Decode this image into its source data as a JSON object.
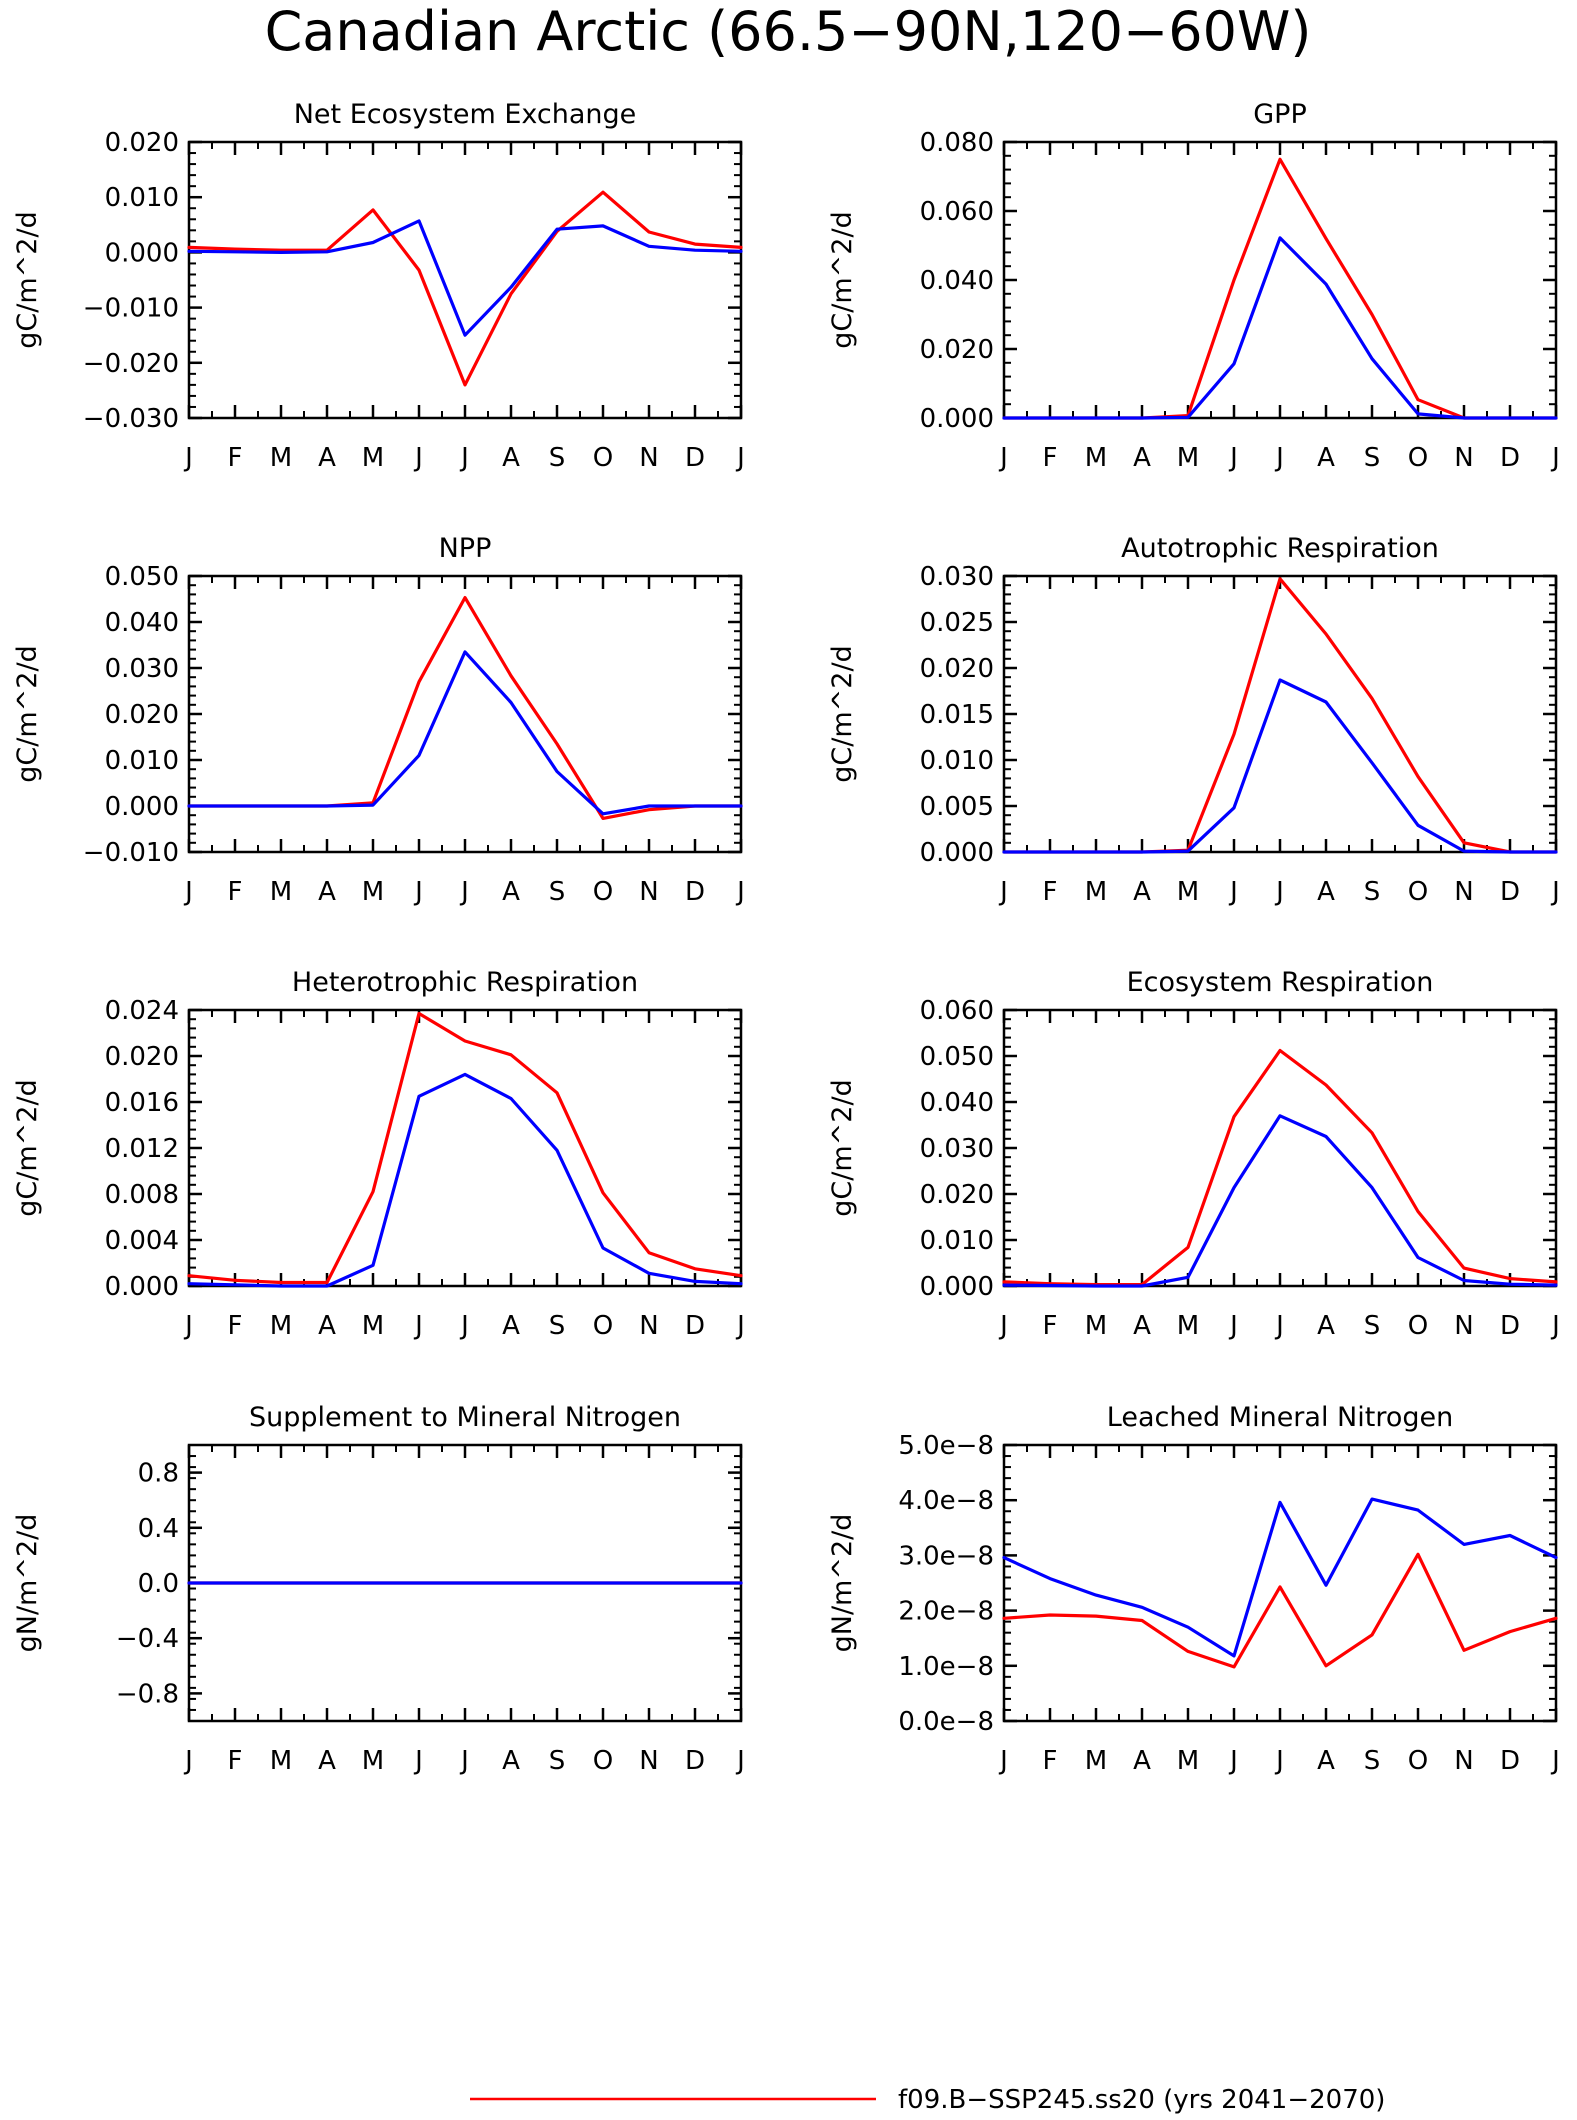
{
  "figure": {
    "title": "Canadian Arctic (66.5−90N,120−60W)"
  },
  "legend": {
    "entries": [
      {
        "label": "f09.B−SSP245.ss20 (yrs 2041−2070)",
        "color": "#ff0000"
      }
    ]
  },
  "colors": {
    "red": "#ff0000",
    "blue": "#0000ff",
    "axes": "#000000"
  },
  "chart_data": [
    {
      "type": "line",
      "title": "Net Ecosystem Exchange",
      "ylabel": "gC/m^2/d",
      "x": [
        "J",
        "F",
        "M",
        "A",
        "M",
        "J",
        "J",
        "A",
        "S",
        "O",
        "N",
        "D",
        "J"
      ],
      "ylim": [
        -0.03,
        0.02
      ],
      "yticks": [
        0.02,
        0.01,
        0.0,
        -0.01,
        -0.02,
        -0.03
      ],
      "ytick_labels": [
        "0.020",
        "0.010",
        "0.000",
        "−0.010",
        "−0.020",
        "−0.030"
      ],
      "series": [
        {
          "color": "#ff0000",
          "values": [
            0.0009,
            0.0006,
            0.0004,
            0.0004,
            0.0077,
            -0.0032,
            -0.024,
            -0.0075,
            0.0038,
            0.0109,
            0.0037,
            0.0015,
            0.0009
          ]
        },
        {
          "color": "#0000ff",
          "values": [
            0.0002,
            0.0001,
            0.0,
            0.0001,
            0.0018,
            0.0057,
            -0.015,
            -0.0063,
            0.0042,
            0.0048,
            0.0011,
            0.0004,
            0.0002
          ]
        }
      ]
    },
    {
      "type": "line",
      "title": "GPP",
      "ylabel": "gC/m^2/d",
      "x": [
        "J",
        "F",
        "M",
        "A",
        "M",
        "J",
        "J",
        "A",
        "S",
        "O",
        "N",
        "D",
        "J"
      ],
      "ylim": [
        0.0,
        0.08
      ],
      "yticks": [
        0.08,
        0.06,
        0.04,
        0.02,
        0.0
      ],
      "ytick_labels": [
        "0.080",
        "0.060",
        "0.040",
        "0.020",
        "0.000"
      ],
      "series": [
        {
          "color": "#ff0000",
          "values": [
            0.0,
            0.0,
            0.0,
            0.0,
            0.0007,
            0.04,
            0.075,
            0.052,
            0.03,
            0.0053,
            0.0,
            0.0,
            0.0
          ]
        },
        {
          "color": "#0000ff",
          "values": [
            0.0,
            0.0,
            0.0,
            0.0,
            0.0002,
            0.0157,
            0.0522,
            0.0388,
            0.0172,
            0.0012,
            0.0,
            0.0,
            0.0
          ]
        }
      ]
    },
    {
      "type": "line",
      "title": "NPP",
      "ylabel": "gC/m^2/d",
      "x": [
        "J",
        "F",
        "M",
        "A",
        "M",
        "J",
        "J",
        "A",
        "S",
        "O",
        "N",
        "D",
        "J"
      ],
      "ylim": [
        -0.01,
        0.05
      ],
      "yticks": [
        0.05,
        0.04,
        0.03,
        0.02,
        0.01,
        0.0,
        -0.01
      ],
      "ytick_labels": [
        "0.050",
        "0.040",
        "0.030",
        "0.020",
        "0.010",
        "0.000",
        "−0.010"
      ],
      "series": [
        {
          "color": "#ff0000",
          "values": [
            0.0,
            0.0,
            0.0,
            0.0,
            0.0007,
            0.027,
            0.0453,
            0.0283,
            0.0135,
            -0.0027,
            -0.0008,
            0.0,
            0.0
          ]
        },
        {
          "color": "#0000ff",
          "values": [
            0.0,
            0.0,
            0.0,
            0.0,
            0.0002,
            0.011,
            0.0335,
            0.0225,
            0.0075,
            -0.0017,
            0.0,
            0.0,
            0.0
          ]
        }
      ]
    },
    {
      "type": "line",
      "title": "Autotrophic Respiration",
      "ylabel": "gC/m^2/d",
      "x": [
        "J",
        "F",
        "M",
        "A",
        "M",
        "J",
        "J",
        "A",
        "S",
        "O",
        "N",
        "D",
        "J"
      ],
      "ylim": [
        0.0,
        0.03
      ],
      "yticks": [
        0.03,
        0.025,
        0.02,
        0.015,
        0.01,
        0.005,
        0.0
      ],
      "ytick_labels": [
        "0.030",
        "0.025",
        "0.020",
        "0.015",
        "0.010",
        "0.005",
        "0.000"
      ],
      "series": [
        {
          "color": "#ff0000",
          "values": [
            0.0,
            0.0,
            0.0,
            0.0,
            0.0002,
            0.0128,
            0.0297,
            0.0237,
            0.0167,
            0.0082,
            0.001,
            0.0,
            0.0
          ]
        },
        {
          "color": "#0000ff",
          "values": [
            0.0,
            0.0,
            0.0,
            0.0,
            0.0001,
            0.0048,
            0.0187,
            0.0163,
            0.0097,
            0.0029,
            0.0001,
            0.0,
            0.0
          ]
        }
      ]
    },
    {
      "type": "line",
      "title": "Heterotrophic Respiration",
      "ylabel": "gC/m^2/d",
      "x": [
        "J",
        "F",
        "M",
        "A",
        "M",
        "J",
        "J",
        "A",
        "S",
        "O",
        "N",
        "D",
        "J"
      ],
      "ylim": [
        0.0,
        0.024
      ],
      "yticks": [
        0.024,
        0.02,
        0.016,
        0.012,
        0.008,
        0.004,
        0.0
      ],
      "ytick_labels": [
        "0.024",
        "0.020",
        "0.016",
        "0.012",
        "0.008",
        "0.004",
        "0.000"
      ],
      "series": [
        {
          "color": "#ff0000",
          "values": [
            0.0009,
            0.0005,
            0.0003,
            0.0003,
            0.0082,
            0.0237,
            0.0213,
            0.0201,
            0.0168,
            0.0081,
            0.0029,
            0.0015,
            0.0009
          ]
        },
        {
          "color": "#0000ff",
          "values": [
            0.0002,
            0.0001,
            0.0,
            0.0,
            0.0018,
            0.0165,
            0.0184,
            0.0163,
            0.0118,
            0.0033,
            0.0011,
            0.0004,
            0.0002
          ]
        }
      ]
    },
    {
      "type": "line",
      "title": "Ecosystem Respiration",
      "ylabel": "gC/m^2/d",
      "x": [
        "J",
        "F",
        "M",
        "A",
        "M",
        "J",
        "J",
        "A",
        "S",
        "O",
        "N",
        "D",
        "J"
      ],
      "ylim": [
        0.0,
        0.06
      ],
      "yticks": [
        0.06,
        0.05,
        0.04,
        0.03,
        0.02,
        0.01,
        0.0
      ],
      "ytick_labels": [
        "0.060",
        "0.050",
        "0.040",
        "0.030",
        "0.020",
        "0.010",
        "0.000"
      ],
      "series": [
        {
          "color": "#ff0000",
          "values": [
            0.0009,
            0.0005,
            0.0003,
            0.0003,
            0.0084,
            0.0368,
            0.0512,
            0.0437,
            0.0333,
            0.0162,
            0.0039,
            0.0016,
            0.0009
          ]
        },
        {
          "color": "#0000ff",
          "values": [
            0.0002,
            0.0001,
            0.0,
            0.0,
            0.0019,
            0.0214,
            0.037,
            0.0325,
            0.0214,
            0.0062,
            0.0012,
            0.0004,
            0.0002
          ]
        }
      ]
    },
    {
      "type": "line",
      "title": "Supplement to Mineral Nitrogen",
      "ylabel": "gN/m^2/d",
      "x": [
        "J",
        "F",
        "M",
        "A",
        "M",
        "J",
        "J",
        "A",
        "S",
        "O",
        "N",
        "D",
        "J"
      ],
      "ylim": [
        -1.0,
        1.0
      ],
      "yticks": [
        0.8,
        0.4,
        0.0,
        -0.4,
        -0.8
      ],
      "ytick_labels": [
        "0.8",
        "0.4",
        "0.0",
        "−0.4",
        "−0.8"
      ],
      "series": [
        {
          "color": "#ff0000",
          "values": [
            0,
            0,
            0,
            0,
            0,
            0,
            0,
            0,
            0,
            0,
            0,
            0,
            0
          ]
        },
        {
          "color": "#0000ff",
          "values": [
            0,
            0,
            0,
            0,
            0,
            0,
            0,
            0,
            0,
            0,
            0,
            0,
            0
          ]
        }
      ]
    },
    {
      "type": "line",
      "title": "Leached Mineral Nitrogen",
      "ylabel": "gN/m^2/d",
      "x": [
        "J",
        "F",
        "M",
        "A",
        "M",
        "J",
        "J",
        "A",
        "S",
        "O",
        "N",
        "D",
        "J"
      ],
      "ylim": [
        0.0,
        5e-08
      ],
      "yticks": [
        5e-08,
        4e-08,
        3e-08,
        2e-08,
        1e-08,
        0.0
      ],
      "ytick_labels": [
        "5.0e−8",
        "4.0e−8",
        "3.0e−8",
        "2.0e−8",
        "1.0e−8",
        "0.0e−8"
      ],
      "series": [
        {
          "color": "#ff0000",
          "values": [
            1.86e-08,
            1.92e-08,
            1.9e-08,
            1.82e-08,
            1.26e-08,
            9.8e-09,
            2.43e-08,
            1e-08,
            1.56e-08,
            3.02e-08,
            1.28e-08,
            1.62e-08,
            1.86e-08
          ]
        },
        {
          "color": "#0000ff",
          "values": [
            2.96e-08,
            2.58e-08,
            2.28e-08,
            2.06e-08,
            1.7e-08,
            1.18e-08,
            3.96e-08,
            2.46e-08,
            4.02e-08,
            3.82e-08,
            3.2e-08,
            3.36e-08,
            2.96e-08
          ]
        }
      ]
    }
  ]
}
